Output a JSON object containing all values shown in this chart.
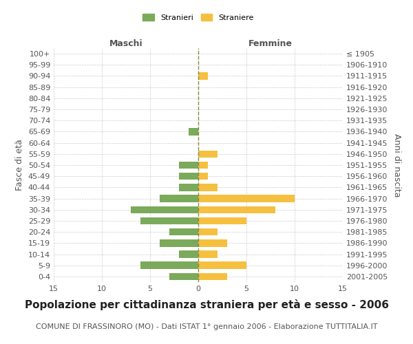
{
  "age_groups": [
    "100+",
    "95-99",
    "90-94",
    "85-89",
    "80-84",
    "75-79",
    "70-74",
    "65-69",
    "60-64",
    "55-59",
    "50-54",
    "45-49",
    "40-44",
    "35-39",
    "30-34",
    "25-29",
    "20-24",
    "15-19",
    "10-14",
    "5-9",
    "0-4"
  ],
  "birth_years": [
    "≤ 1905",
    "1906-1910",
    "1911-1915",
    "1916-1920",
    "1921-1925",
    "1926-1930",
    "1931-1935",
    "1936-1940",
    "1941-1945",
    "1946-1950",
    "1951-1955",
    "1956-1960",
    "1961-1965",
    "1966-1970",
    "1971-1975",
    "1976-1980",
    "1981-1985",
    "1986-1990",
    "1991-1995",
    "1996-2000",
    "2001-2005"
  ],
  "males": [
    0,
    0,
    0,
    0,
    0,
    0,
    0,
    1,
    0,
    0,
    2,
    2,
    2,
    4,
    7,
    6,
    3,
    4,
    2,
    6,
    3
  ],
  "females": [
    0,
    0,
    1,
    0,
    0,
    0,
    0,
    0,
    0,
    2,
    1,
    1,
    2,
    10,
    8,
    5,
    2,
    3,
    2,
    5,
    3
  ],
  "male_color": "#7aaa5a",
  "female_color": "#f5c040",
  "xlim": 15,
  "title": "Popolazione per cittadinanza straniera per età e sesso - 2006",
  "subtitle": "COMUNE DI FRASSINORO (MO) - Dati ISTAT 1° gennaio 2006 - Elaborazione TUTTITALIA.IT",
  "left_label": "Maschi",
  "right_label": "Femmine",
  "y_left_label": "Fasce di età",
  "y_right_label": "Anni di nascita",
  "legend_male": "Stranieri",
  "legend_female": "Straniere",
  "bg_color": "#ffffff",
  "grid_color": "#cccccc",
  "text_color": "#555555",
  "title_fontsize": 11,
  "subtitle_fontsize": 8,
  "tick_fontsize": 8,
  "label_fontsize": 9
}
